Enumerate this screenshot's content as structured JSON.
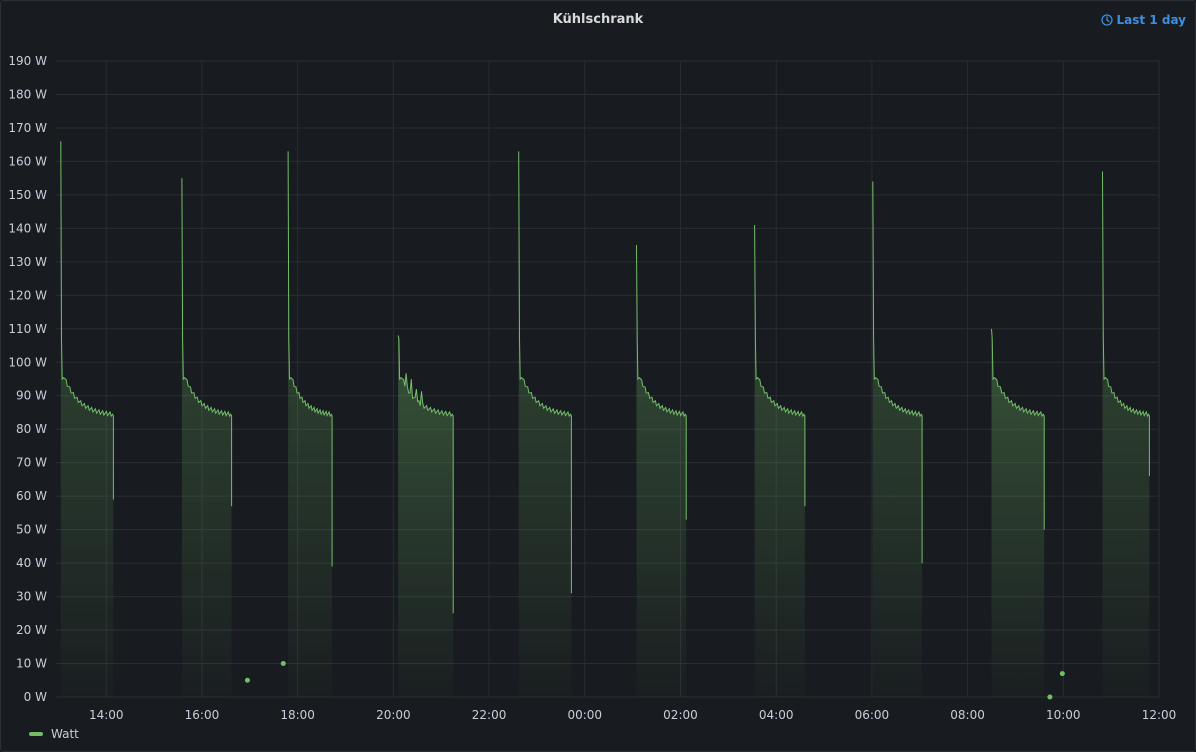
{
  "panel": {
    "title": "Kühlschrank",
    "time_range_label": "Last 1 day",
    "time_range_icon": "clock-icon"
  },
  "colors": {
    "series": "#73bf69",
    "background": "#181b1f",
    "grid": "#2c3036",
    "text": "#ccccdc",
    "accent": "#3d8fe0"
  },
  "chart_data": {
    "type": "area",
    "title": "Kühlschrank",
    "xlabel": "",
    "ylabel": "",
    "unit": "W",
    "ylim": [
      0,
      190
    ],
    "xlim": [
      12.95,
      36.0
    ],
    "grid": true,
    "legend_position": "bottom-left",
    "y_ticks": [
      {
        "value": 0,
        "label": "0 W"
      },
      {
        "value": 10,
        "label": "10 W"
      },
      {
        "value": 20,
        "label": "20 W"
      },
      {
        "value": 30,
        "label": "30 W"
      },
      {
        "value": 40,
        "label": "40 W"
      },
      {
        "value": 50,
        "label": "50 W"
      },
      {
        "value": 60,
        "label": "60 W"
      },
      {
        "value": 70,
        "label": "70 W"
      },
      {
        "value": 80,
        "label": "80 W"
      },
      {
        "value": 90,
        "label": "90 W"
      },
      {
        "value": 100,
        "label": "100 W"
      },
      {
        "value": 110,
        "label": "110 W"
      },
      {
        "value": 120,
        "label": "120 W"
      },
      {
        "value": 130,
        "label": "130 W"
      },
      {
        "value": 140,
        "label": "140 W"
      },
      {
        "value": 150,
        "label": "150 W"
      },
      {
        "value": 160,
        "label": "160 W"
      },
      {
        "value": 170,
        "label": "170 W"
      },
      {
        "value": 180,
        "label": "180 W"
      },
      {
        "value": 190,
        "label": "190 W"
      }
    ],
    "x_ticks": [
      {
        "value": 14,
        "label": "14:00"
      },
      {
        "value": 16,
        "label": "16:00"
      },
      {
        "value": 18,
        "label": "18:00"
      },
      {
        "value": 20,
        "label": "20:00"
      },
      {
        "value": 22,
        "label": "22:00"
      },
      {
        "value": 24,
        "label": "00:00"
      },
      {
        "value": 26,
        "label": "02:00"
      },
      {
        "value": 28,
        "label": "04:00"
      },
      {
        "value": 30,
        "label": "06:00"
      },
      {
        "value": 32,
        "label": "08:00"
      },
      {
        "value": 34,
        "label": "10:00"
      },
      {
        "value": 36,
        "label": "12:00"
      }
    ],
    "series": [
      {
        "name": "Watt",
        "cycles": [
          {
            "start": 13.05,
            "end": 14.15,
            "peak": 166,
            "drop": 59
          },
          {
            "start": 15.58,
            "end": 16.62,
            "peak": 155,
            "drop": 57
          },
          {
            "start": 17.8,
            "end": 18.72,
            "peak": 163,
            "drop": 39
          },
          {
            "start": 20.1,
            "end": 21.25,
            "peak": 108,
            "drop": 25
          },
          {
            "start": 22.62,
            "end": 23.72,
            "peak": 163,
            "drop": 31
          },
          {
            "start": 25.08,
            "end": 26.12,
            "peak": 135,
            "drop": 53
          },
          {
            "start": 27.55,
            "end": 28.6,
            "peak": 141,
            "drop": 57
          },
          {
            "start": 30.02,
            "end": 31.05,
            "peak": 154,
            "drop": 40
          },
          {
            "start": 32.5,
            "end": 33.6,
            "peak": 110,
            "drop": 50
          },
          {
            "start": 34.82,
            "end": 35.8,
            "peak": 157,
            "drop": 66
          }
        ],
        "isolated_points": [
          {
            "x": 16.95,
            "y": 5
          },
          {
            "x": 17.7,
            "y": 10
          },
          {
            "x": 33.72,
            "y": 0
          },
          {
            "x": 33.98,
            "y": 7
          }
        ]
      }
    ]
  }
}
